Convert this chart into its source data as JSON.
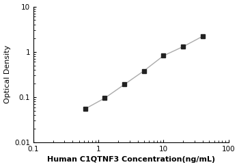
{
  "x": [
    0.625,
    1.25,
    2.5,
    5,
    10,
    20,
    40
  ],
  "y": [
    0.055,
    0.095,
    0.19,
    0.38,
    0.82,
    1.3,
    2.2
  ],
  "xlim": [
    0.1,
    100
  ],
  "ylim": [
    0.01,
    10
  ],
  "xlabel": "Human C1QTNF3 Concentration(ng/mL)",
  "ylabel": "Optical Density",
  "line_color": "#aaaaaa",
  "marker_color": "#222222",
  "marker_style": "s",
  "marker_size": 4,
  "line_width": 1.0,
  "background_color": "#ffffff",
  "xlabel_fontsize": 8,
  "ylabel_fontsize": 8,
  "tick_fontsize": 7.5,
  "xtick_labels": [
    "0.1",
    "1",
    "10",
    "100"
  ],
  "xtick_values": [
    0.1,
    1,
    10,
    100
  ],
  "ytick_labels": [
    "0.01",
    "0.1",
    "1",
    "10"
  ],
  "ytick_values": [
    0.01,
    0.1,
    1,
    10
  ]
}
